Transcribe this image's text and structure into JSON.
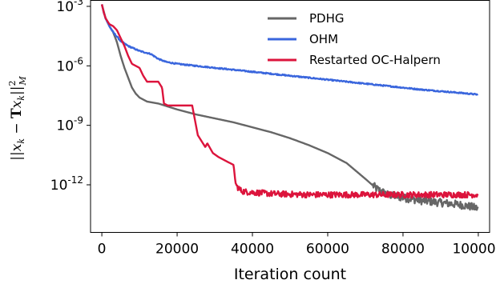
{
  "chart_data": {
    "type": "line",
    "xlabel": "Iteration count",
    "ylabel": "||x_k − T x_k||²_M",
    "xlim": [
      -3000,
      103000
    ],
    "ylim_log10": [
      -14.4,
      -2.7
    ],
    "yscale": "log",
    "grid": false,
    "legend_position": "top-right",
    "x_ticks": [
      0,
      20000,
      40000,
      60000,
      80000,
      100000
    ],
    "x_tick_labels": [
      "0",
      "20000",
      "40000",
      "60000",
      "80000",
      "100000"
    ],
    "y_ticks_log10": [
      -3,
      -6,
      -9,
      -12
    ],
    "y_tick_labels": [
      {
        "base": "10",
        "exp": "-3"
      },
      {
        "base": "10",
        "exp": "-6"
      },
      {
        "base": "10",
        "exp": "-9"
      },
      {
        "base": "10",
        "exp": "-12"
      }
    ],
    "series": [
      {
        "name": "PDHG",
        "color": "#666666",
        "points_log10": [
          [
            0,
            -2.9
          ],
          [
            1000,
            -3.6
          ],
          [
            2000,
            -4.0
          ],
          [
            3000,
            -4.3
          ],
          [
            4000,
            -4.8
          ],
          [
            5000,
            -5.5
          ],
          [
            6000,
            -6.1
          ],
          [
            7000,
            -6.6
          ],
          [
            8000,
            -7.1
          ],
          [
            9000,
            -7.4
          ],
          [
            10000,
            -7.6
          ],
          [
            12000,
            -7.8
          ],
          [
            15000,
            -7.9
          ],
          [
            20000,
            -8.2
          ],
          [
            25000,
            -8.45
          ],
          [
            30000,
            -8.65
          ],
          [
            35000,
            -8.85
          ],
          [
            40000,
            -9.1
          ],
          [
            45000,
            -9.35
          ],
          [
            50000,
            -9.65
          ],
          [
            55000,
            -10.0
          ],
          [
            60000,
            -10.4
          ],
          [
            65000,
            -10.9
          ],
          [
            70000,
            -11.7
          ],
          [
            73000,
            -12.2
          ],
          [
            76000,
            -12.5
          ],
          [
            80000,
            -12.65
          ],
          [
            85000,
            -12.8
          ],
          [
            90000,
            -12.9
          ],
          [
            95000,
            -13.0
          ],
          [
            98000,
            -13.1
          ],
          [
            100000,
            -13.2
          ]
        ],
        "noise_amplitude": 0.2,
        "noise_start_x": 72000
      },
      {
        "name": "OHM",
        "color": "#3a66dd",
        "points_log10": [
          [
            0,
            -2.9
          ],
          [
            500,
            -3.3
          ],
          [
            1000,
            -3.6
          ],
          [
            2000,
            -4.0
          ],
          [
            3000,
            -4.3
          ],
          [
            5000,
            -4.75
          ],
          [
            7000,
            -5.0
          ],
          [
            10000,
            -5.25
          ],
          [
            13000,
            -5.4
          ],
          [
            15000,
            -5.65
          ],
          [
            17000,
            -5.8
          ],
          [
            20000,
            -5.9
          ],
          [
            25000,
            -6.0
          ],
          [
            30000,
            -6.1
          ],
          [
            35000,
            -6.2
          ],
          [
            40000,
            -6.3
          ],
          [
            45000,
            -6.4
          ],
          [
            50000,
            -6.5
          ],
          [
            55000,
            -6.6
          ],
          [
            60000,
            -6.7
          ],
          [
            65000,
            -6.8
          ],
          [
            70000,
            -6.9
          ],
          [
            75000,
            -7.0
          ],
          [
            80000,
            -7.1
          ],
          [
            85000,
            -7.2
          ],
          [
            90000,
            -7.28
          ],
          [
            95000,
            -7.36
          ],
          [
            100000,
            -7.45
          ]
        ],
        "noise_amplitude": 0.03,
        "noise_start_x": 0
      },
      {
        "name": "Restarted OC-Halpern",
        "color": "#dc143c",
        "points_log10": [
          [
            0,
            -2.9
          ],
          [
            500,
            -3.3
          ],
          [
            1000,
            -3.6
          ],
          [
            2000,
            -3.9
          ],
          [
            3000,
            -4.0
          ],
          [
            4000,
            -4.2
          ],
          [
            5000,
            -4.6
          ],
          [
            6000,
            -5.0
          ],
          [
            7000,
            -5.5
          ],
          [
            8000,
            -5.9
          ],
          [
            9000,
            -6.0
          ],
          [
            10000,
            -6.1
          ],
          [
            11000,
            -6.5
          ],
          [
            12000,
            -6.8
          ],
          [
            15000,
            -6.8
          ],
          [
            16000,
            -7.1
          ],
          [
            16500,
            -7.9
          ],
          [
            17500,
            -8.0
          ],
          [
            20000,
            -8.0
          ],
          [
            24000,
            -8.0
          ],
          [
            24500,
            -8.5
          ],
          [
            25500,
            -9.5
          ],
          [
            26500,
            -9.8
          ],
          [
            27500,
            -10.1
          ],
          [
            28000,
            -9.9
          ],
          [
            29500,
            -10.4
          ],
          [
            31000,
            -10.6
          ],
          [
            33000,
            -10.8
          ],
          [
            35000,
            -11.0
          ],
          [
            35500,
            -11.9
          ],
          [
            36000,
            -12.1
          ],
          [
            37000,
            -12.3
          ],
          [
            38000,
            -12.35
          ],
          [
            45000,
            -12.45
          ],
          [
            55000,
            -12.5
          ],
          [
            65000,
            -12.5
          ],
          [
            75000,
            -12.5
          ],
          [
            85000,
            -12.5
          ],
          [
            95000,
            -12.5
          ],
          [
            100000,
            -12.5
          ]
        ],
        "noise_amplitude": 0.15,
        "noise_start_x": 36000
      }
    ]
  }
}
